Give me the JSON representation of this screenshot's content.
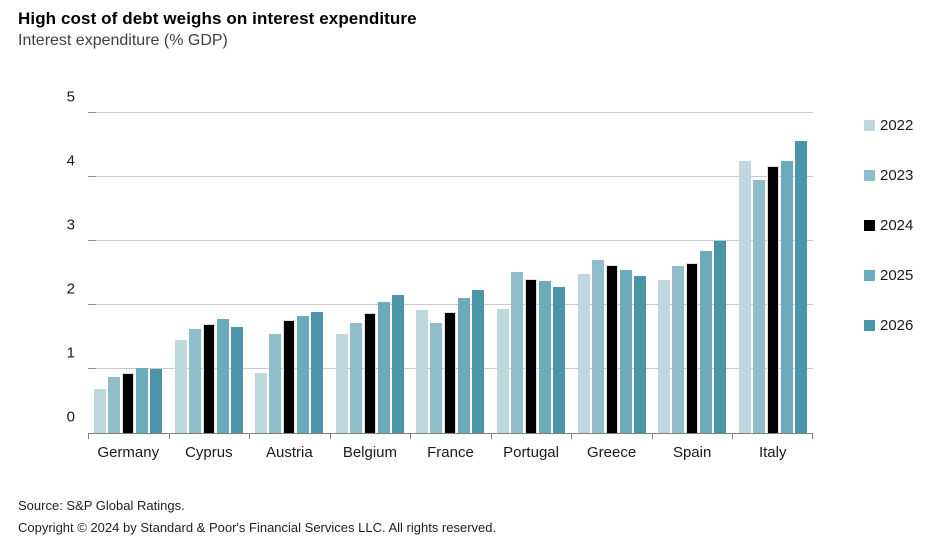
{
  "chart_data": {
    "type": "bar",
    "title": "High cost of debt weighs on interest expenditure",
    "subtitle": "Interest expenditure (% GDP)",
    "xlabel": "",
    "ylabel": "",
    "ylim": [
      0,
      5
    ],
    "yticks": [
      0,
      1,
      2,
      3,
      4,
      5
    ],
    "grid": "horizontal",
    "legend_position": "right",
    "categories": [
      "Germany",
      "Cyprus",
      "Austria",
      "Belgium",
      "France",
      "Portugal",
      "Greece",
      "Spain",
      "Italy"
    ],
    "series": [
      {
        "name": "2022",
        "color": "#bfd8e0",
        "values": [
          0.68,
          1.46,
          0.94,
          1.55,
          1.92,
          1.94,
          2.49,
          2.39,
          4.25
        ]
      },
      {
        "name": "2023",
        "color": "#8fbeca",
        "values": [
          0.87,
          1.62,
          1.54,
          1.72,
          1.72,
          2.52,
          2.71,
          2.61,
          3.95
        ]
      },
      {
        "name": "2024",
        "color": "#000000",
        "values": [
          0.93,
          1.7,
          1.77,
          1.87,
          1.89,
          2.4,
          2.62,
          2.66,
          4.17
        ]
      },
      {
        "name": "2025",
        "color": "#6babbd",
        "values": [
          1.02,
          1.78,
          1.83,
          2.05,
          2.11,
          2.38,
          2.55,
          2.84,
          4.25
        ]
      },
      {
        "name": "2026",
        "color": "#4b94a9",
        "values": [
          1.0,
          1.66,
          1.89,
          2.15,
          2.23,
          2.28,
          2.46,
          3.0,
          4.56
        ]
      }
    ]
  },
  "footer": {
    "source": "Source: S&P Global Ratings.",
    "copyright": "Copyright © 2024 by Standard & Poor's Financial Services LLC. All rights reserved."
  }
}
